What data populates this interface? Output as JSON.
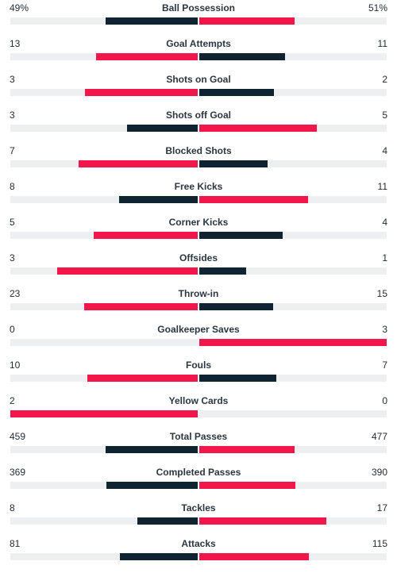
{
  "colors": {
    "leader": "#f2164b",
    "trailer": "#0f2430",
    "track": "#eeeff0"
  },
  "stats": [
    {
      "name": "Ball Possession",
      "home": "49%",
      "away": "51%",
      "home_value": 49,
      "away_value": 51
    },
    {
      "name": "Goal Attempts",
      "home": "13",
      "away": "11",
      "home_value": 13,
      "away_value": 11
    },
    {
      "name": "Shots on Goal",
      "home": "3",
      "away": "2",
      "home_value": 3,
      "away_value": 2
    },
    {
      "name": "Shots off Goal",
      "home": "3",
      "away": "5",
      "home_value": 3,
      "away_value": 5
    },
    {
      "name": "Blocked Shots",
      "home": "7",
      "away": "4",
      "home_value": 7,
      "away_value": 4
    },
    {
      "name": "Free Kicks",
      "home": "8",
      "away": "11",
      "home_value": 8,
      "away_value": 11
    },
    {
      "name": "Corner Kicks",
      "home": "5",
      "away": "4",
      "home_value": 5,
      "away_value": 4
    },
    {
      "name": "Offsides",
      "home": "3",
      "away": "1",
      "home_value": 3,
      "away_value": 1
    },
    {
      "name": "Throw-in",
      "home": "23",
      "away": "15",
      "home_value": 23,
      "away_value": 15
    },
    {
      "name": "Goalkeeper Saves",
      "home": "0",
      "away": "3",
      "home_value": 0,
      "away_value": 3
    },
    {
      "name": "Fouls",
      "home": "10",
      "away": "7",
      "home_value": 10,
      "away_value": 7
    },
    {
      "name": "Yellow Cards",
      "home": "2",
      "away": "0",
      "home_value": 2,
      "away_value": 0
    },
    {
      "name": "Total Passes",
      "home": "459",
      "away": "477",
      "home_value": 459,
      "away_value": 477
    },
    {
      "name": "Completed Passes",
      "home": "369",
      "away": "390",
      "home_value": 369,
      "away_value": 390
    },
    {
      "name": "Tackles",
      "home": "8",
      "away": "17",
      "home_value": 8,
      "away_value": 17
    },
    {
      "name": "Attacks",
      "home": "81",
      "away": "115",
      "home_value": 81,
      "away_value": 115
    }
  ]
}
